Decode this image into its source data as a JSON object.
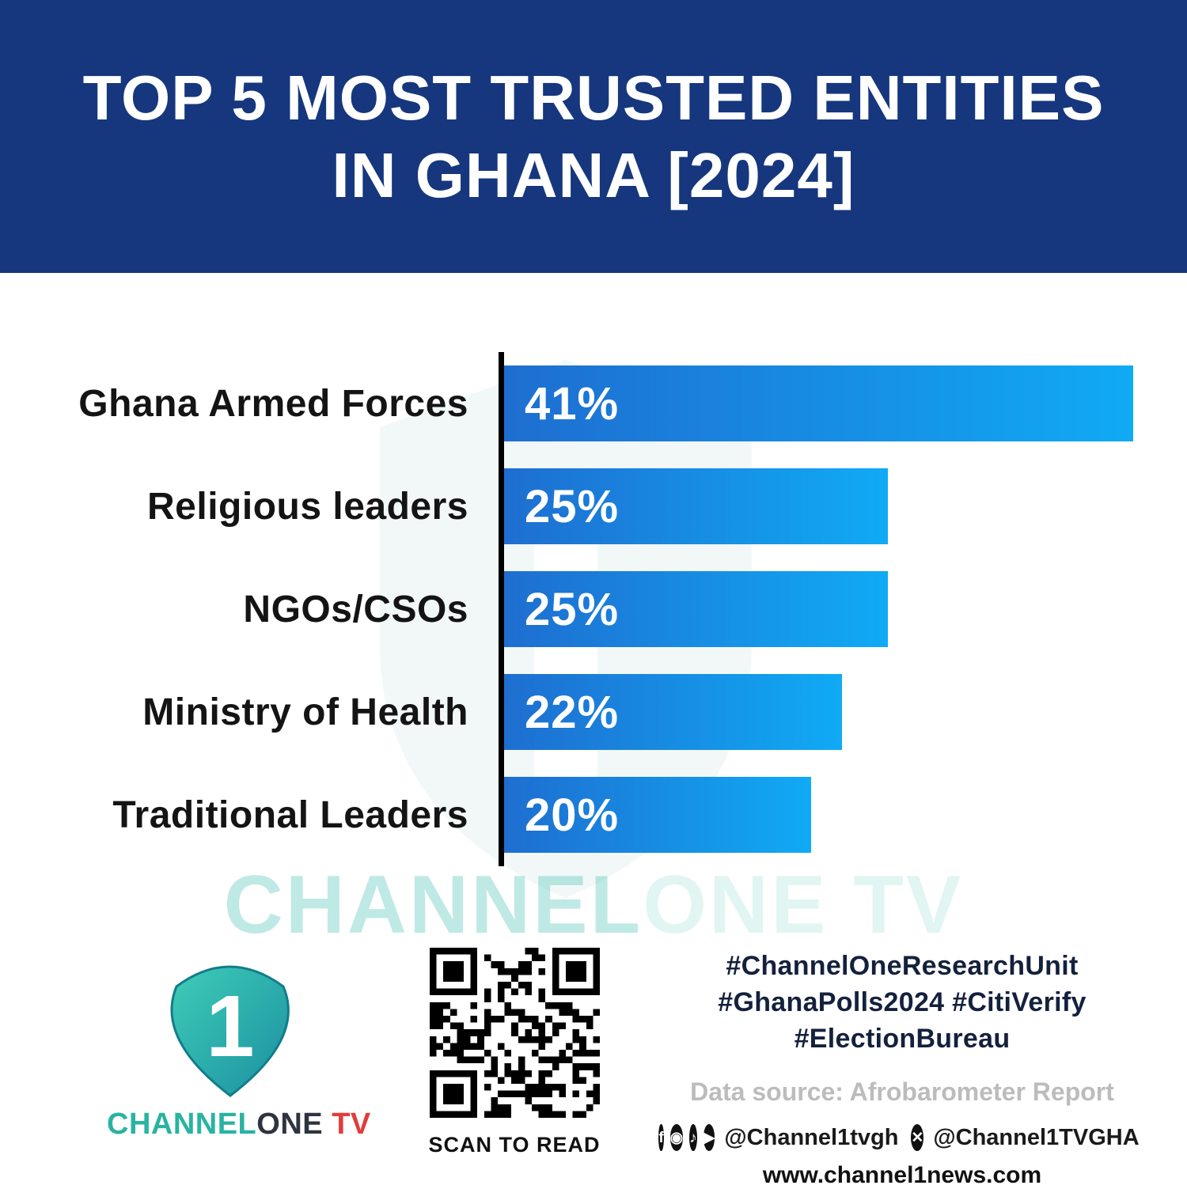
{
  "header": {
    "title_line1": "TOP 5 MOST TRUSTED ENTITIES",
    "title_line2": "IN GHANA [2024]"
  },
  "chart_data": {
    "type": "bar",
    "orientation": "horizontal",
    "title": "TOP 5 MOST TRUSTED ENTITIES IN GHANA [2024]",
    "categories": [
      "Ghana Armed Forces",
      "Religious leaders",
      "NGOs/CSOs",
      "Ministry of Health",
      "Traditional Leaders"
    ],
    "values": [
      41,
      25,
      25,
      22,
      20
    ],
    "value_labels": [
      "41%",
      "25%",
      "25%",
      "22%",
      "20%"
    ],
    "xlabel": "",
    "ylabel": "",
    "xlim": [
      0,
      41
    ],
    "grid": false,
    "legend": false,
    "bar_color_start": "#1e6ed0",
    "bar_color_end": "#10aaf5"
  },
  "watermark": {
    "strong": "CHANNEL",
    "light": "ONE TV"
  },
  "footer": {
    "logo": {
      "numeral": "1",
      "channel": "CHANNEL",
      "one": "ONE",
      "tv": " TV"
    },
    "qr_caption": "SCAN TO READ",
    "hashtags": {
      "line1": "#ChannelOneResearchUnit",
      "line2": "#GhanaPolls2024 #CitiVerify",
      "line3": "#ElectionBureau"
    },
    "data_source": "Data source: Afrobarometer Report",
    "social": {
      "row_icons_1": [
        "facebook",
        "instagram",
        "tiktok",
        "youtube"
      ],
      "handle_1": "@Channel1tvgh",
      "row_icons_2": [
        "x"
      ],
      "handle_2": "@Channel1TVGHA"
    },
    "website": "www.channel1news.com"
  }
}
